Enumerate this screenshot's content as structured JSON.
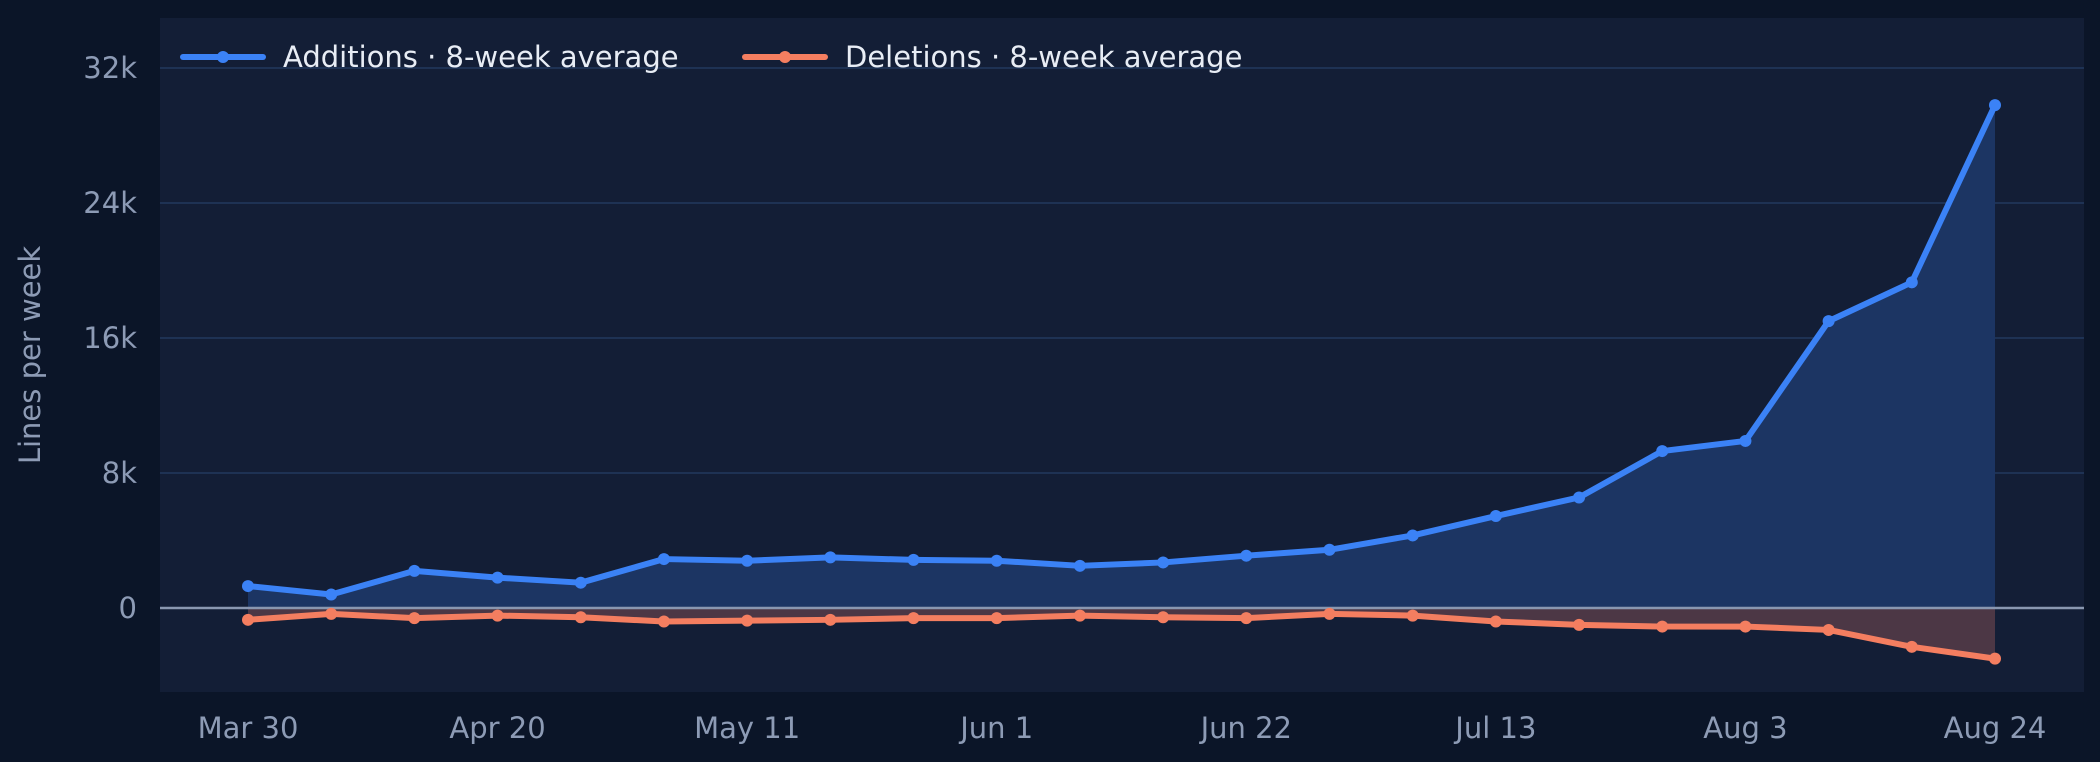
{
  "chart_data": {
    "type": "area",
    "x": [
      "Mar 30",
      "Apr 6",
      "Apr 13",
      "Apr 20",
      "Apr 27",
      "May 4",
      "May 11",
      "May 18",
      "May 25",
      "Jun 1",
      "Jun 8",
      "Jun 15",
      "Jun 22",
      "Jun 29",
      "Jul 6",
      "Jul 13",
      "Jul 20",
      "Jul 27",
      "Aug 3",
      "Aug 10",
      "Aug 17",
      "Aug 24"
    ],
    "x_tick_labels": [
      "Mar 30",
      "Apr 20",
      "May 11",
      "Jun 1",
      "Jun 22",
      "Jul 13",
      "Aug 3",
      "Aug 24"
    ],
    "series": [
      {
        "name": "Additions · 8-week average",
        "color": "#3b82f6",
        "values": [
          1300,
          800,
          2200,
          1800,
          1500,
          2900,
          2800,
          3000,
          2850,
          2800,
          2500,
          2700,
          3100,
          3450,
          4300,
          5450,
          6550,
          9300,
          9900,
          17000,
          19300,
          29800
        ]
      },
      {
        "name": "Deletions · 8-week average",
        "color": "#f47e60",
        "values": [
          -700,
          -350,
          -600,
          -450,
          -550,
          -800,
          -750,
          -700,
          -600,
          -600,
          -450,
          -550,
          -600,
          -350,
          -450,
          -800,
          -1000,
          -1100,
          -1100,
          -1300,
          -2300,
          -3000
        ]
      }
    ],
    "ylabel": "Lines per week",
    "y_ticks": [
      0,
      8000,
      16000,
      24000,
      32000
    ],
    "y_tick_labels": [
      "0",
      "8k",
      "16k",
      "24k",
      "32k"
    ],
    "ylim": [
      -5000,
      35000
    ],
    "grid": true,
    "legend_position": "top-left"
  },
  "colors": {
    "page_bg": "#0b1528",
    "plot_bg": "#131e36",
    "grid": "#22395e",
    "zero_line": "#8a97b0",
    "additions_fill": "#1c3563",
    "deletions_fill": "#4c3745"
  }
}
